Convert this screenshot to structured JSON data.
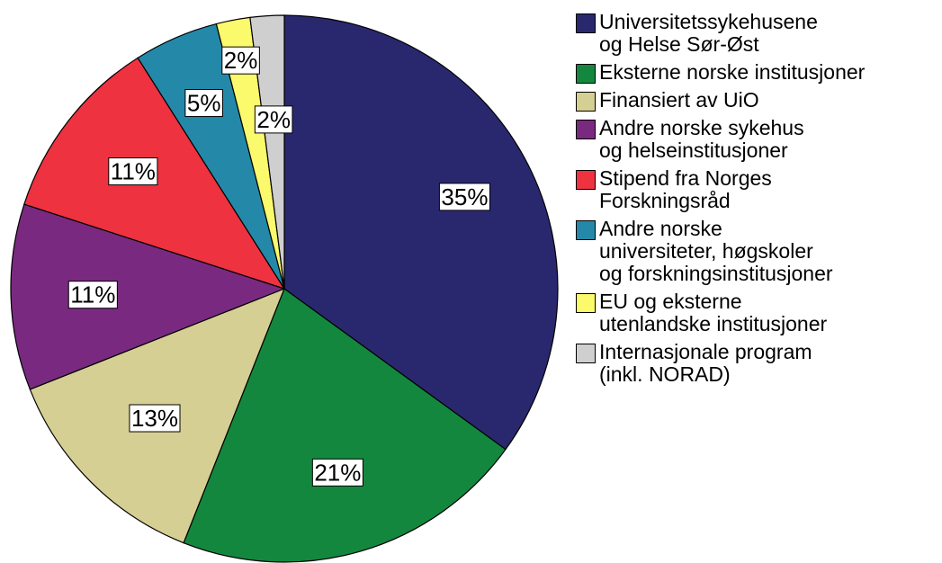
{
  "chart_data": {
    "type": "pie",
    "categories": [
      "Universitetssykehusene\nog Helse Sør-Øst",
      "Eksterne norske institusjoner",
      "Finansiert av UiO",
      "Andre norske sykehus\nog helseinstitusjoner",
      "Stipend fra Norges\nForskningsråd",
      "Andre norske\nuniversiteter, høgskoler\nog forskningsinstitusjoner",
      "EU og eksterne\nutenlandske institusjoner",
      "Internasjonale program\n(inkl. NORAD)"
    ],
    "values": [
      35,
      21,
      13,
      11,
      11,
      5,
      2,
      2
    ],
    "value_labels": [
      "35%",
      "21%",
      "13%",
      "11%",
      "11%",
      "5%",
      "2%",
      "2%"
    ],
    "colors": [
      "#29286f",
      "#14873f",
      "#d6cf94",
      "#792a80",
      "#ee3240",
      "#2489a8",
      "#fbf96c",
      "#cfcfcf"
    ],
    "legend": "right"
  }
}
